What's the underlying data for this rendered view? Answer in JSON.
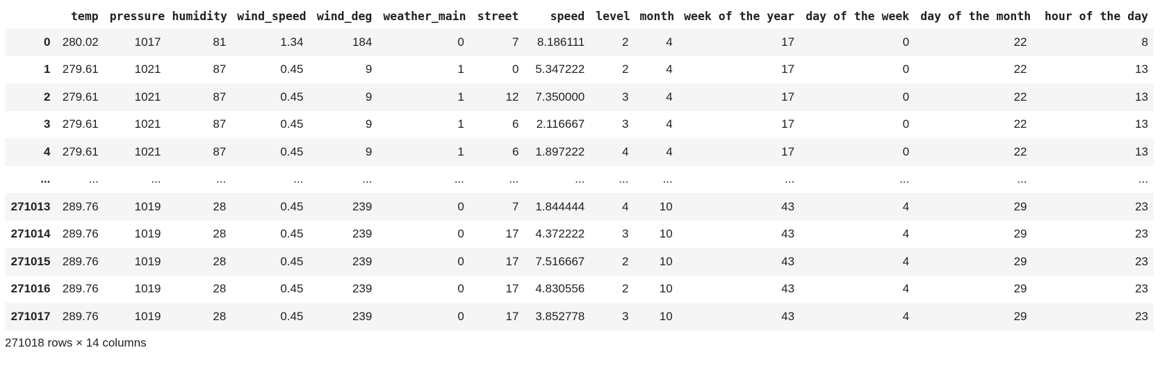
{
  "table": {
    "index_header": "",
    "columns": [
      "temp",
      "pressure",
      "humidity",
      "wind_speed",
      "wind_deg",
      "weather_main",
      "street",
      "speed",
      "level",
      "month",
      "week of the year",
      "day of the week",
      "day of the month",
      "hour of the day"
    ],
    "rows": [
      {
        "index": "0",
        "cells": [
          "280.02",
          "1017",
          "81",
          "1.34",
          "184",
          "0",
          "7",
          "8.186111",
          "2",
          "4",
          "17",
          "0",
          "22",
          "8"
        ]
      },
      {
        "index": "1",
        "cells": [
          "279.61",
          "1021",
          "87",
          "0.45",
          "9",
          "1",
          "0",
          "5.347222",
          "2",
          "4",
          "17",
          "0",
          "22",
          "13"
        ]
      },
      {
        "index": "2",
        "cells": [
          "279.61",
          "1021",
          "87",
          "0.45",
          "9",
          "1",
          "12",
          "7.350000",
          "3",
          "4",
          "17",
          "0",
          "22",
          "13"
        ]
      },
      {
        "index": "3",
        "cells": [
          "279.61",
          "1021",
          "87",
          "0.45",
          "9",
          "1",
          "6",
          "2.116667",
          "3",
          "4",
          "17",
          "0",
          "22",
          "13"
        ]
      },
      {
        "index": "4",
        "cells": [
          "279.61",
          "1021",
          "87",
          "0.45",
          "9",
          "1",
          "6",
          "1.897222",
          "4",
          "4",
          "17",
          "0",
          "22",
          "13"
        ]
      },
      {
        "index": "...",
        "cells": [
          "...",
          "...",
          "...",
          "...",
          "...",
          "...",
          "...",
          "...",
          "...",
          "...",
          "...",
          "...",
          "...",
          "..."
        ]
      },
      {
        "index": "271013",
        "cells": [
          "289.76",
          "1019",
          "28",
          "0.45",
          "239",
          "0",
          "7",
          "1.844444",
          "4",
          "10",
          "43",
          "4",
          "29",
          "23"
        ]
      },
      {
        "index": "271014",
        "cells": [
          "289.76",
          "1019",
          "28",
          "0.45",
          "239",
          "0",
          "17",
          "4.372222",
          "3",
          "10",
          "43",
          "4",
          "29",
          "23"
        ]
      },
      {
        "index": "271015",
        "cells": [
          "289.76",
          "1019",
          "28",
          "0.45",
          "239",
          "0",
          "17",
          "7.516667",
          "2",
          "10",
          "43",
          "4",
          "29",
          "23"
        ]
      },
      {
        "index": "271016",
        "cells": [
          "289.76",
          "1019",
          "28",
          "0.45",
          "239",
          "0",
          "17",
          "4.830556",
          "2",
          "10",
          "43",
          "4",
          "29",
          "23"
        ]
      },
      {
        "index": "271017",
        "cells": [
          "289.76",
          "1019",
          "28",
          "0.45",
          "239",
          "0",
          "17",
          "3.852778",
          "3",
          "10",
          "43",
          "4",
          "29",
          "23"
        ]
      }
    ]
  },
  "footer": {
    "shape_text": "271018 rows × 14 columns"
  }
}
